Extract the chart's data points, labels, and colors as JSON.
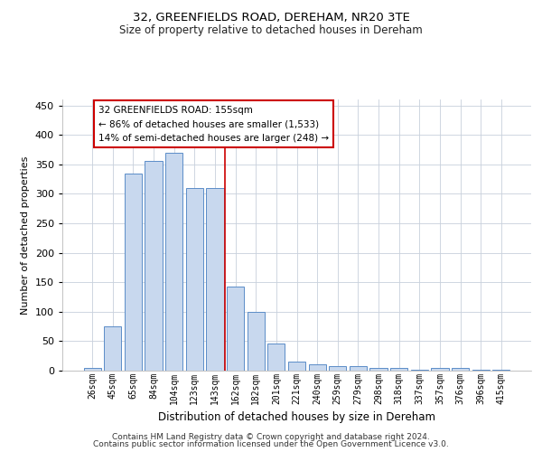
{
  "title": "32, GREENFIELDS ROAD, DEREHAM, NR20 3TE",
  "subtitle": "Size of property relative to detached houses in Dereham",
  "xlabel": "Distribution of detached houses by size in Dereham",
  "ylabel": "Number of detached properties",
  "categories": [
    "26sqm",
    "45sqm",
    "65sqm",
    "84sqm",
    "104sqm",
    "123sqm",
    "143sqm",
    "162sqm",
    "182sqm",
    "201sqm",
    "221sqm",
    "240sqm",
    "259sqm",
    "279sqm",
    "298sqm",
    "318sqm",
    "337sqm",
    "357sqm",
    "376sqm",
    "396sqm",
    "415sqm"
  ],
  "values": [
    5,
    75,
    335,
    355,
    370,
    310,
    310,
    143,
    100,
    46,
    16,
    11,
    8,
    8,
    5,
    5,
    2,
    4,
    4,
    2,
    1
  ],
  "bar_color": "#c8d8ee",
  "bar_edge_color": "#5b8dc8",
  "vline_color": "#cc0000",
  "vline_x": 6.5,
  "annotation_box_color": "#cc0000",
  "annotation_title": "32 GREENFIELDS ROAD: 155sqm",
  "annotation_line1": "← 86% of detached houses are smaller (1,533)",
  "annotation_line2": "14% of semi-detached houses are larger (248) →",
  "ylim": [
    0,
    460
  ],
  "yticks": [
    0,
    50,
    100,
    150,
    200,
    250,
    300,
    350,
    400,
    450
  ],
  "footer_line1": "Contains HM Land Registry data © Crown copyright and database right 2024.",
  "footer_line2": "Contains public sector information licensed under the Open Government Licence v3.0.",
  "background_color": "#ffffff",
  "grid_color": "#c8d0dc"
}
